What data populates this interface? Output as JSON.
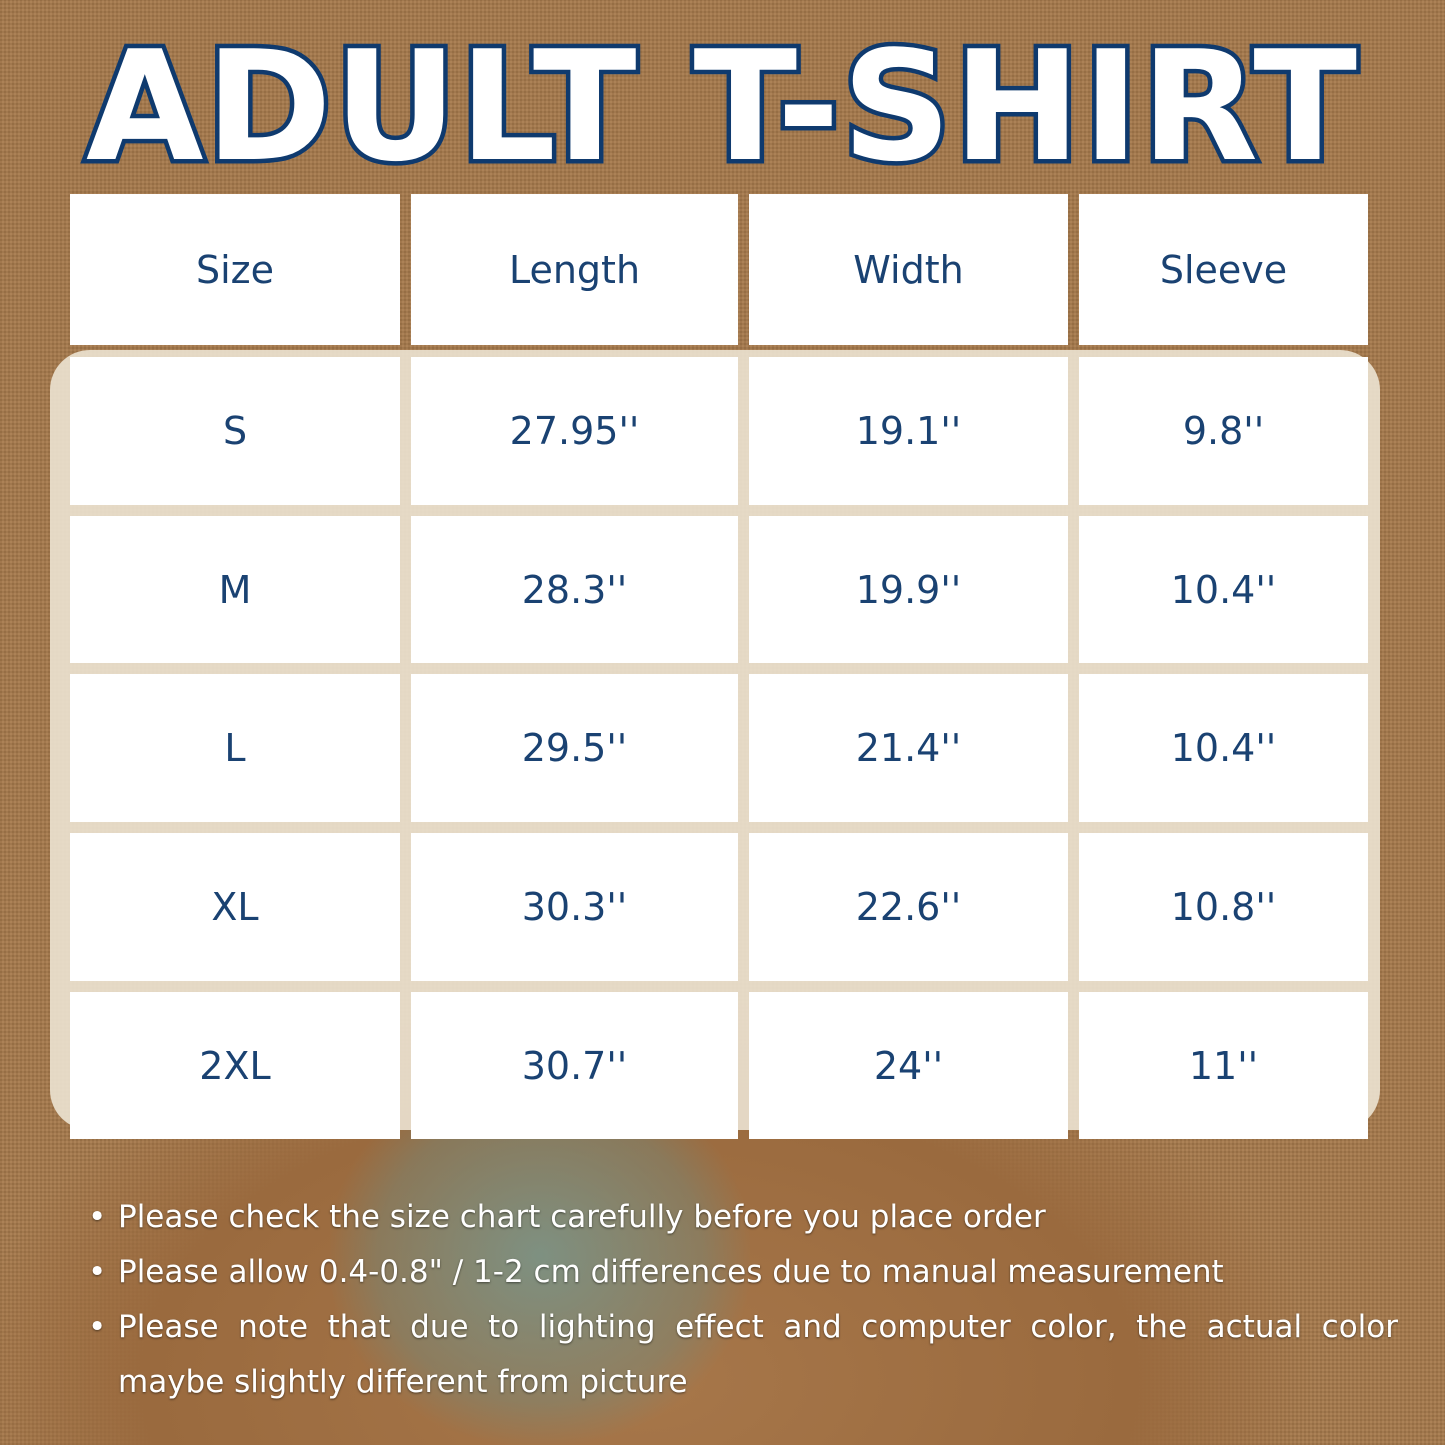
{
  "title": "ADULT T-SHIRT",
  "table": {
    "headers": [
      "Size",
      "Length",
      "Width",
      "Sleeve"
    ],
    "rows": [
      [
        "S",
        "27.95''",
        "19.1''",
        "9.8''"
      ],
      [
        "M",
        "28.3''",
        "19.9''",
        "10.4''"
      ],
      [
        "L",
        "29.5''",
        "21.4''",
        "10.4''"
      ],
      [
        "XL",
        "30.3''",
        "22.6''",
        "10.8''"
      ],
      [
        "2XL",
        "30.7''",
        "24''",
        "11''"
      ]
    ]
  },
  "notes": [
    "Please check the size chart carefully before you place order",
    "Please allow 0.4-0.8\" / 1-2 cm differences due to manual measurement",
    "Please note that due to lighting effect and computer color, the actual color",
    "maybe slightly different from picture"
  ],
  "colors": {
    "text": "#1a4272",
    "title_outline": "#0f3a6e",
    "background": "#a77a4c"
  }
}
